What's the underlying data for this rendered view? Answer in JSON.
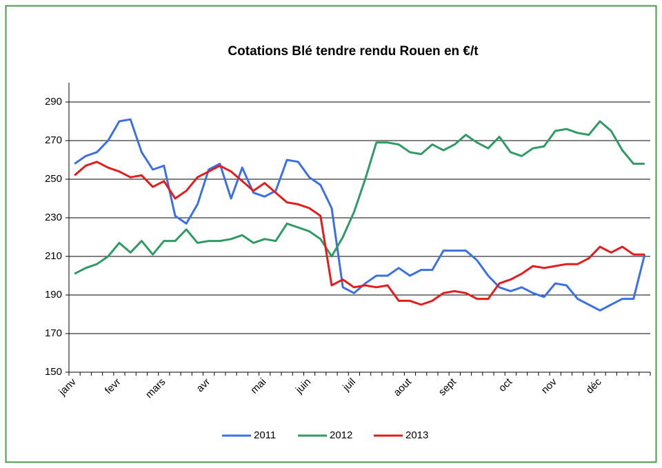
{
  "chart_data": {
    "type": "line",
    "title": "Cotations Blé tendre rendu Rouen en €/t",
    "categories": [
      "janv",
      null,
      null,
      null,
      "fevr",
      null,
      null,
      null,
      "mars",
      null,
      null,
      null,
      "avr",
      null,
      null,
      null,
      null,
      "mai",
      null,
      null,
      null,
      "juin",
      null,
      null,
      null,
      "juil",
      null,
      null,
      null,
      null,
      "aout",
      null,
      null,
      null,
      "sept",
      null,
      null,
      null,
      null,
      "oct",
      null,
      null,
      null,
      "nov",
      null,
      null,
      null,
      "déc",
      null,
      null,
      null,
      null
    ],
    "series": [
      {
        "name": "2011",
        "color": "#3b6fe6",
        "values": [
          258,
          262,
          264,
          270,
          280,
          281,
          264,
          255,
          257,
          231,
          227,
          237,
          255,
          258,
          240,
          256,
          243,
          241,
          244,
          260,
          259,
          251,
          247,
          235,
          194,
          191,
          196,
          200,
          200,
          204,
          200,
          203,
          203,
          213,
          213,
          213,
          208,
          200,
          194,
          192,
          194,
          191,
          189,
          196,
          195,
          188,
          185,
          182,
          185,
          188,
          188,
          211
        ]
      },
      {
        "name": "2012",
        "color": "#2f9a64",
        "values": [
          201,
          204,
          206,
          210,
          217,
          212,
          218,
          211,
          218,
          218,
          224,
          217,
          218,
          218,
          219,
          221,
          217,
          219,
          218,
          227,
          225,
          223,
          219,
          210,
          220,
          233,
          250,
          269,
          269,
          268,
          264,
          263,
          268,
          265,
          268,
          273,
          269,
          266,
          272,
          264,
          262,
          266,
          267,
          275,
          276,
          274,
          273,
          280,
          275,
          265,
          258,
          258
        ]
      },
      {
        "name": "2013",
        "color": "#e41b1b",
        "values": [
          252,
          257,
          259,
          256,
          254,
          251,
          252,
          246,
          249,
          240,
          244,
          251,
          254,
          257,
          254,
          249,
          244,
          248,
          243,
          238,
          237,
          235,
          231,
          195,
          198,
          194,
          195,
          194,
          195,
          187,
          187,
          185,
          187,
          191,
          192,
          191,
          188,
          188,
          196,
          198,
          201,
          205,
          204,
          205,
          206,
          206,
          209,
          215,
          212,
          215,
          211,
          211
        ]
      }
    ],
    "ylim": [
      150,
      300
    ],
    "yticks": [
      150,
      170,
      190,
      210,
      230,
      250,
      270,
      290
    ],
    "grid": true,
    "legend": "bottom"
  }
}
